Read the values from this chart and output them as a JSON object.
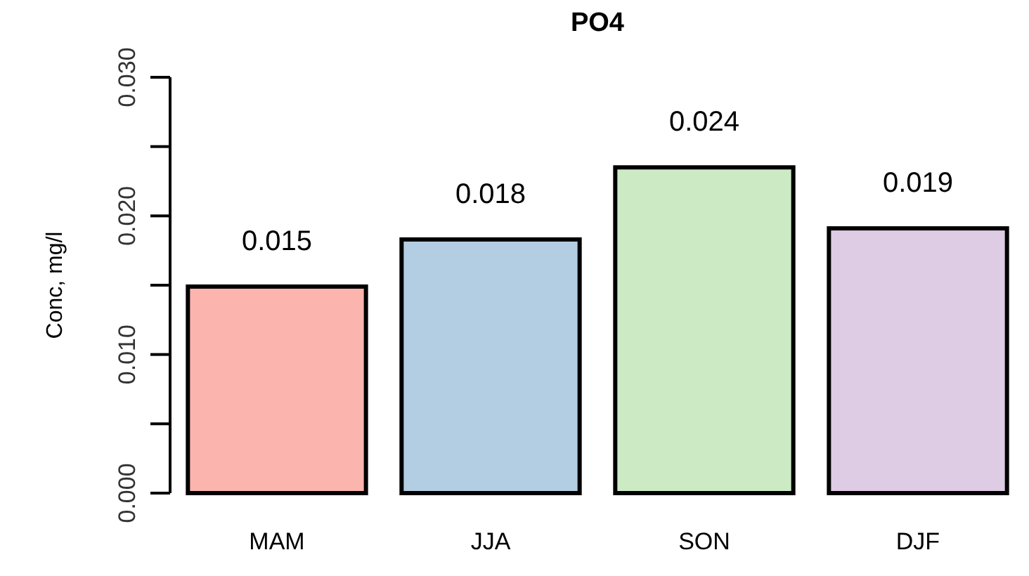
{
  "chart_data": {
    "type": "bar",
    "title": "PO4",
    "ylabel": "Conc, mg/l",
    "categories": [
      "MAM",
      "JJA",
      "SON",
      "DJF"
    ],
    "values": [
      0.0149,
      0.0183,
      0.0235,
      0.0191
    ],
    "colors": [
      "#fbb4ae",
      "#b3cde3",
      "#ccebc5",
      "#decbe4"
    ],
    "value_labels": [
      "0.015",
      "0.018",
      "0.024",
      "0.019"
    ],
    "ylim": [
      0,
      0.03
    ],
    "yticks": [
      "0.000",
      {
        "value": 0.005,
        "label": null
      },
      "0.010",
      {
        "value": 0.015,
        "label": null
      },
      "0.020",
      {
        "value": 0.025,
        "label": null
      },
      "0.030"
    ],
    "grid": false
  }
}
